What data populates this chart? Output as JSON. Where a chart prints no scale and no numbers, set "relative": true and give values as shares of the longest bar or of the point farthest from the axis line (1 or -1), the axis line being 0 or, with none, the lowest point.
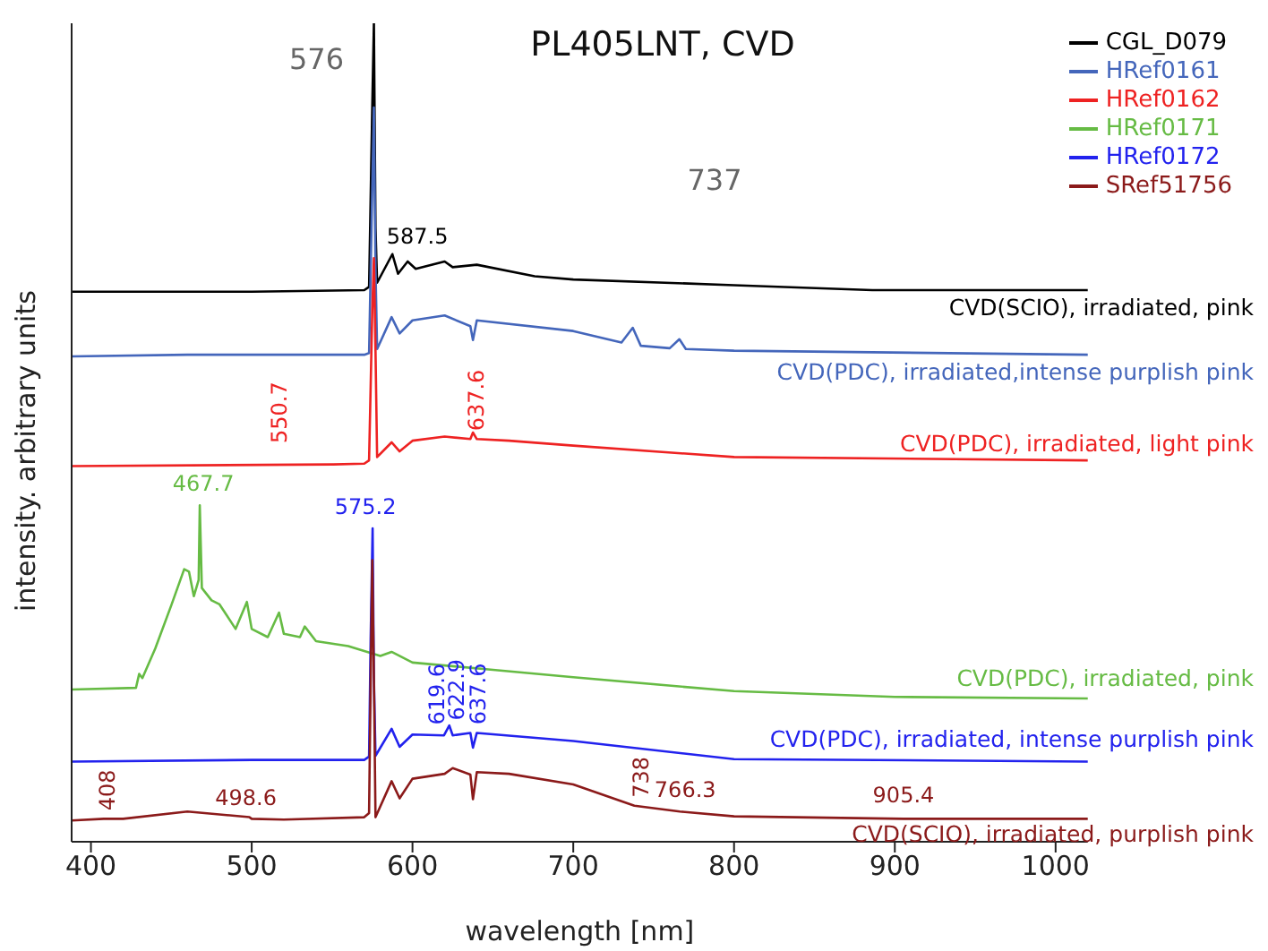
{
  "chart_data": {
    "type": "line",
    "title": "PL405LNT, CVD",
    "xlabel": "wavelength [nm]",
    "ylabel": "intensity. arbitrary units",
    "relative": true,
    "xlim": [
      388,
      1020
    ],
    "xticks": [
      400,
      500,
      600,
      700,
      800,
      900,
      1000
    ],
    "legend": "top right",
    "grid": false,
    "marker": "none",
    "line_style": "solid",
    "series": [
      {
        "name": "CGL_D079",
        "color": "#000000",
        "x": [
          388,
          500,
          570,
          573,
          575,
          576,
          577,
          578,
          587.5,
          591,
          597,
          602,
          620,
          625,
          640,
          676,
          700,
          800,
          886,
          1020
        ],
        "values": [
          0.672,
          0.672,
          0.674,
          0.678,
          0.9,
          1.0,
          0.75,
          0.683,
          0.718,
          0.694,
          0.709,
          0.7,
          0.709,
          0.702,
          0.705,
          0.691,
          0.687,
          0.68,
          0.674,
          0.674
        ]
      },
      {
        "name": "HRef0161",
        "color": "#4466bb",
        "x": [
          388,
          460,
          570,
          573,
          575,
          576,
          577,
          578,
          587,
          592,
          600,
          620,
          636,
          637.6,
          640,
          700,
          730,
          737,
          742,
          760,
          766,
          770,
          800,
          1020
        ],
        "values": [
          0.593,
          0.595,
          0.595,
          0.597,
          0.8,
          0.897,
          0.7,
          0.602,
          0.641,
          0.621,
          0.637,
          0.643,
          0.63,
          0.613,
          0.637,
          0.624,
          0.61,
          0.628,
          0.606,
          0.603,
          0.614,
          0.602,
          0.6,
          0.595
        ]
      },
      {
        "name": "HRef0162",
        "color": "#ee2222",
        "x": [
          388,
          550.7,
          570,
          573,
          575,
          576,
          577,
          578,
          587,
          592,
          600,
          620,
          636,
          637.6,
          640,
          660,
          700,
          800,
          1020
        ],
        "values": [
          0.459,
          0.461,
          0.462,
          0.466,
          0.65,
          0.713,
          0.6,
          0.47,
          0.488,
          0.477,
          0.49,
          0.495,
          0.492,
          0.5,
          0.492,
          0.49,
          0.484,
          0.47,
          0.466
        ]
      },
      {
        "name": "HRef0171",
        "color": "#66bb44",
        "x": [
          388,
          428,
          430,
          432,
          440,
          450,
          458,
          461,
          464,
          467,
          467.7,
          469,
          475,
          480,
          490,
          497,
          500,
          510,
          517,
          520,
          530,
          533,
          540,
          560,
          580,
          587,
          600,
          650,
          700,
          800,
          900,
          1020
        ],
        "values": [
          0.186,
          0.188,
          0.205,
          0.2,
          0.236,
          0.289,
          0.333,
          0.33,
          0.3,
          0.32,
          0.411,
          0.31,
          0.295,
          0.29,
          0.26,
          0.293,
          0.26,
          0.25,
          0.28,
          0.254,
          0.25,
          0.263,
          0.245,
          0.239,
          0.227,
          0.232,
          0.219,
          0.21,
          0.201,
          0.184,
          0.177,
          0.175
        ]
      },
      {
        "name": "HRef0172",
        "color": "#2222ee",
        "x": [
          388,
          500,
          570,
          573,
          574,
          575.2,
          576,
          577,
          587,
          592,
          600,
          619.6,
          622.9,
          625,
          636,
          637.6,
          640,
          700,
          800,
          1020
        ],
        "values": [
          0.098,
          0.1,
          0.1,
          0.104,
          0.25,
          0.383,
          0.2,
          0.105,
          0.138,
          0.116,
          0.131,
          0.13,
          0.142,
          0.13,
          0.133,
          0.115,
          0.133,
          0.123,
          0.101,
          0.098
        ]
      },
      {
        "name": "SRef51756",
        "color": "#8b1a1a",
        "x": [
          388,
          408,
          420,
          460,
          498.6,
          500,
          520,
          570,
          573,
          574,
          575,
          576,
          577,
          587,
          592,
          600,
          620,
          625,
          636,
          637.6,
          640,
          660,
          700,
          738,
          766.3,
          800,
          905.4,
          1020
        ],
        "values": [
          0.026,
          0.028,
          0.028,
          0.037,
          0.03,
          0.028,
          0.027,
          0.03,
          0.035,
          0.2,
          0.344,
          0.2,
          0.03,
          0.074,
          0.053,
          0.077,
          0.083,
          0.09,
          0.082,
          0.052,
          0.085,
          0.083,
          0.07,
          0.044,
          0.037,
          0.031,
          0.028,
          0.028
        ]
      }
    ],
    "annotations": [
      {
        "text": "576",
        "x": 576,
        "y": 1.0
      },
      "737",
      {
        "text": "587.5",
        "x": 587.5,
        "y": 0.718
      },
      {
        "text": "550.7",
        "x": 550.7,
        "y": 0.461
      },
      {
        "text": "637.6",
        "x": 637.6,
        "y": 0.5
      },
      {
        "text": "467.7",
        "x": 467.7,
        "y": 0.411
      },
      {
        "text": "575.2",
        "x": 575.2,
        "y": 0.383
      },
      {
        "text": "619.6",
        "x": 619.6,
        "y": 0.13
      },
      {
        "text": "622.9",
        "x": 622.9,
        "y": 0.142
      },
      {
        "text": "637.6",
        "x": 637.6,
        "y": 0.115
      },
      {
        "text": "408",
        "x": 408,
        "y": 0.028
      },
      {
        "text": "498.6",
        "x": 498.6,
        "y": 0.03
      },
      {
        "text": "738",
        "x": 738,
        "y": 0.044
      },
      {
        "text": "766.3",
        "x": 766.3,
        "y": 0.037
      },
      {
        "text": "905.4",
        "x": 905.4,
        "y": 0.028
      },
      "CVD(SCIO), irradiated, pink",
      "CVD(PDC), irradiated,intense purplish pink",
      "CVD(PDC), irradiated, light pink",
      "CVD(PDC), irradiated, pink",
      "CVD(PDC), irradiated, intense purplish pink",
      "CVD(SCIO), irradiated, purplish pink"
    ]
  }
}
